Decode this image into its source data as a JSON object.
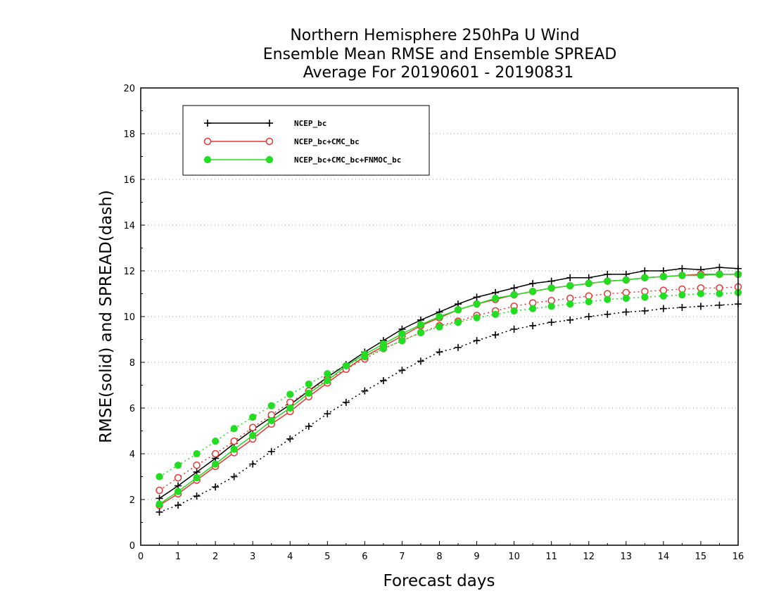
{
  "chart_data": {
    "type": "line",
    "title": [
      "Northern Hemisphere 250hPa U Wind",
      "Ensemble Mean RMSE and Ensemble SPREAD",
      "Average For 20190601 - 20190831"
    ],
    "xlabel": "Forecast days",
    "ylabel": "RMSE(solid) and SPREAD(dash)",
    "xlim": [
      0,
      16
    ],
    "ylim": [
      0,
      20
    ],
    "xticks": [
      "0",
      "1",
      "2",
      "3",
      "4",
      "5",
      "6",
      "7",
      "8",
      "9",
      "10",
      "11",
      "12",
      "13",
      "14",
      "15",
      "16"
    ],
    "yticks": [
      "0",
      "2",
      "4",
      "6",
      "8",
      "10",
      "12",
      "14",
      "16",
      "18",
      "20"
    ],
    "grid": "horizontal dotted",
    "legend_placement": "top-left",
    "x": [
      0.5,
      1,
      1.5,
      2,
      2.5,
      3,
      3.5,
      4,
      4.5,
      5,
      5.5,
      6,
      6.5,
      7,
      7.5,
      8,
      8.5,
      9,
      9.5,
      10,
      10.5,
      11,
      11.5,
      12,
      12.5,
      13,
      13.5,
      14,
      14.5,
      15,
      15.5,
      16
    ],
    "series": [
      {
        "name": "NCEP_bc",
        "color": "#000000",
        "marker": "plus",
        "rmse": [
          2.05,
          2.6,
          3.2,
          3.8,
          4.45,
          5.05,
          5.6,
          6.15,
          6.75,
          7.35,
          7.9,
          8.45,
          8.95,
          9.45,
          9.85,
          10.2,
          10.55,
          10.85,
          11.05,
          11.25,
          11.45,
          11.55,
          11.7,
          11.7,
          11.85,
          11.85,
          12.0,
          12.0,
          12.1,
          12.05,
          12.15,
          12.1
        ],
        "spread": [
          1.45,
          1.75,
          2.15,
          2.55,
          3.0,
          3.55,
          4.1,
          4.65,
          5.2,
          5.75,
          6.25,
          6.75,
          7.2,
          7.65,
          8.05,
          8.45,
          8.65,
          8.95,
          9.2,
          9.45,
          9.6,
          9.75,
          9.85,
          10.0,
          10.1,
          10.2,
          10.25,
          10.35,
          10.4,
          10.45,
          10.5,
          10.55
        ]
      },
      {
        "name": "NCEP_bc+CMC_bc",
        "color": "#e83535",
        "marker": "circle-open",
        "rmse": [
          1.75,
          2.25,
          2.85,
          3.45,
          4.05,
          4.65,
          5.3,
          5.85,
          6.5,
          7.1,
          7.7,
          8.25,
          8.7,
          9.15,
          9.6,
          9.95,
          10.3,
          10.55,
          10.75,
          10.95,
          11.1,
          11.25,
          11.35,
          11.45,
          11.55,
          11.6,
          11.7,
          11.75,
          11.8,
          11.85,
          11.85,
          11.85
        ],
        "spread": [
          2.4,
          2.95,
          3.5,
          4.0,
          4.55,
          5.15,
          5.7,
          6.25,
          6.75,
          7.25,
          7.7,
          8.15,
          8.6,
          8.95,
          9.3,
          9.6,
          9.8,
          10.05,
          10.25,
          10.45,
          10.6,
          10.7,
          10.8,
          10.9,
          11.0,
          11.05,
          11.1,
          11.15,
          11.2,
          11.25,
          11.25,
          11.3
        ]
      },
      {
        "name": "NCEP_bc+CMC_bc+FNMOC_bc",
        "color": "#22dd22",
        "marker": "circle-filled",
        "rmse": [
          1.8,
          2.35,
          2.95,
          3.55,
          4.2,
          4.8,
          5.45,
          6.0,
          6.65,
          7.2,
          7.85,
          8.35,
          8.8,
          9.25,
          9.65,
          10.0,
          10.3,
          10.55,
          10.8,
          10.95,
          11.1,
          11.25,
          11.35,
          11.45,
          11.55,
          11.6,
          11.7,
          11.75,
          11.8,
          11.8,
          11.85,
          11.85
        ],
        "spread": [
          3.0,
          3.5,
          4.0,
          4.55,
          5.1,
          5.6,
          6.1,
          6.6,
          7.05,
          7.5,
          7.85,
          8.25,
          8.6,
          8.95,
          9.3,
          9.55,
          9.75,
          9.95,
          10.1,
          10.25,
          10.35,
          10.45,
          10.55,
          10.65,
          10.75,
          10.8,
          10.85,
          10.9,
          10.95,
          11.0,
          11.0,
          11.05
        ]
      }
    ]
  }
}
